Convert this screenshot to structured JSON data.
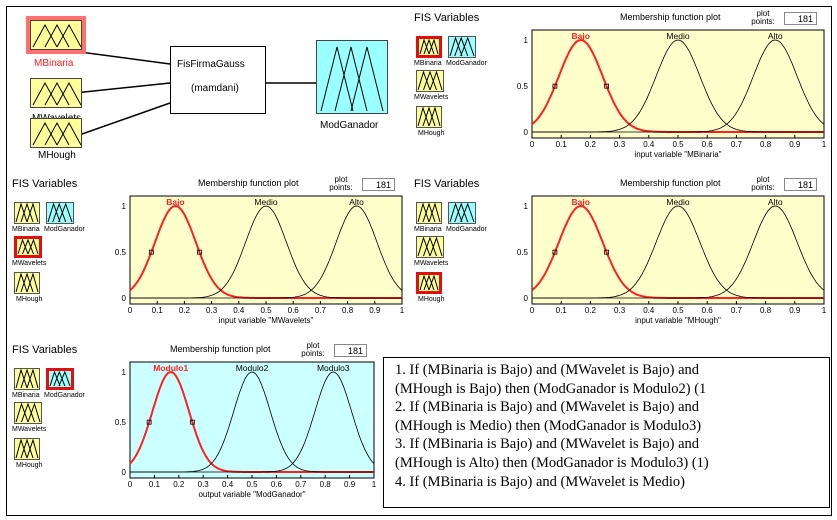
{
  "fis_editor": {
    "inputs": [
      "MBinaria",
      "MWavelets",
      "MHough"
    ],
    "system_name": "FisFirmaGauss",
    "system_type": "(mamdani)",
    "output": "ModGanador"
  },
  "panels": [
    {
      "title": "FIS Variables",
      "mf_title": "Membership function plot",
      "points_label": "plot points:",
      "points_value": "181",
      "mini_inputs": [
        "MBinaria",
        "MWavelets",
        "MHough"
      ],
      "mini_output": "ModGanador",
      "selected": "MBinaria",
      "mf_names": [
        "Bajo",
        "Medio",
        "Alto"
      ],
      "xlabel": "input variable \"MBinaria\""
    },
    {
      "title": "FIS Variables",
      "mf_title": "Membership function plot",
      "points_label": "plot points:",
      "points_value": "181",
      "mini_inputs": [
        "MBinaria",
        "MWavelets",
        "MHough"
      ],
      "mini_output": "ModGanador",
      "selected": "MWavelets",
      "mf_names": [
        "Bajo",
        "Medio",
        "Alto"
      ],
      "xlabel": "input variable \"MWavelets\""
    },
    {
      "title": "FIS Variables",
      "mf_title": "Membership function plot",
      "points_label": "plot points:",
      "points_value": "181",
      "mini_inputs": [
        "MBinaria",
        "MWavelets",
        "MHough"
      ],
      "mini_output": "ModGanador",
      "selected": "MHough",
      "mf_names": [
        "Bajo",
        "Medio",
        "Alto"
      ],
      "xlabel": "input variable \"MHough\""
    },
    {
      "title": "FIS Variables",
      "mf_title": "Membership function plot",
      "points_label": "plot points:",
      "points_value": "181",
      "mini_inputs": [
        "MBinaria",
        "MWavelets",
        "MHough"
      ],
      "mini_output": "ModGanador",
      "selected": "ModGanador",
      "mf_names": [
        "Modulo1",
        "Modulo2",
        "Modulo3"
      ],
      "xlabel": "output variable \"ModGanador\""
    }
  ],
  "chart_data": [
    {
      "type": "line",
      "title": "",
      "xlabel": "input variable \"MBinaria\"",
      "xlim": [
        0,
        1
      ],
      "ylim": [
        0,
        1
      ],
      "x_ticks": [
        "0",
        "0.1",
        "0.2",
        "0.3",
        "0.4",
        "0.5",
        "0.6",
        "0.7",
        "0.8",
        "0.9",
        "1"
      ],
      "y_ticks": [
        "0",
        "0.5",
        "1"
      ],
      "series": [
        {
          "name": "Bajo",
          "center": 0.167,
          "sigma": 0.075
        },
        {
          "name": "Medio",
          "center": 0.5,
          "sigma": 0.075
        },
        {
          "name": "Alto",
          "center": 0.833,
          "sigma": 0.075
        }
      ],
      "highlighted": "Bajo"
    },
    {
      "type": "line",
      "title": "",
      "xlabel": "input variable \"MWavelets\"",
      "xlim": [
        0,
        1
      ],
      "ylim": [
        0,
        1
      ],
      "x_ticks": [
        "0",
        "0.1",
        "0.2",
        "0.3",
        "0.4",
        "0.5",
        "0.6",
        "0.7",
        "0.8",
        "0.9",
        "1"
      ],
      "y_ticks": [
        "0",
        "0.5",
        "1"
      ],
      "series": [
        {
          "name": "Bajo",
          "center": 0.167,
          "sigma": 0.075
        },
        {
          "name": "Medio",
          "center": 0.5,
          "sigma": 0.075
        },
        {
          "name": "Alto",
          "center": 0.833,
          "sigma": 0.075
        }
      ],
      "highlighted": "Bajo"
    },
    {
      "type": "line",
      "title": "",
      "xlabel": "input variable \"MHough\"",
      "xlim": [
        0,
        1
      ],
      "ylim": [
        0,
        1
      ],
      "x_ticks": [
        "0",
        "0.1",
        "0.2",
        "0.3",
        "0.4",
        "0.5",
        "0.6",
        "0.7",
        "0.8",
        "0.9",
        "1"
      ],
      "y_ticks": [
        "0",
        "0.5",
        "1"
      ],
      "series": [
        {
          "name": "Bajo",
          "center": 0.167,
          "sigma": 0.075
        },
        {
          "name": "Medio",
          "center": 0.5,
          "sigma": 0.075
        },
        {
          "name": "Alto",
          "center": 0.833,
          "sigma": 0.075
        }
      ],
      "highlighted": "Bajo"
    },
    {
      "type": "line",
      "title": "",
      "xlabel": "output variable \"ModGanador\"",
      "xlim": [
        0,
        1
      ],
      "ylim": [
        0,
        1
      ],
      "x_ticks": [
        "0",
        "0.1",
        "0.2",
        "0.3",
        "0.4",
        "0.5",
        "0.6",
        "0.7",
        "0.8",
        "0.9",
        "1"
      ],
      "y_ticks": [
        "0",
        "0.5",
        "1"
      ],
      "series": [
        {
          "name": "Modulo1",
          "center": 0.167,
          "sigma": 0.075
        },
        {
          "name": "Modulo2",
          "center": 0.5,
          "sigma": 0.075
        },
        {
          "name": "Modulo3",
          "center": 0.833,
          "sigma": 0.075
        }
      ],
      "highlighted": "Modulo1"
    }
  ],
  "rules": [
    "1. If (MBinaria is Bajo) and (MWavelet is Bajo) and",
    "(MHough is Bajo) then (ModGanador is Modulo2) (1",
    "2. If (MBinaria is Bajo) and (MWavelet is Bajo) and",
    "(MHough is Medio) then (ModGanador is Modulo3)",
    "3. If (MBinaria is Bajo) and (MWavelet is Bajo) and",
    "(MHough is Alto) then (ModGanador is Modulo3) (1)",
    "4. If (MBinaria is Bajo) and (MWavelet is Medio)"
  ],
  "colors": {
    "input_fill": "#ffff99",
    "output_fill": "#99ffff",
    "plot_bg_input": "#ffffcc",
    "plot_bg_output": "#ccffff",
    "highlight": "#ff2020",
    "selected_border": "#e01010"
  }
}
